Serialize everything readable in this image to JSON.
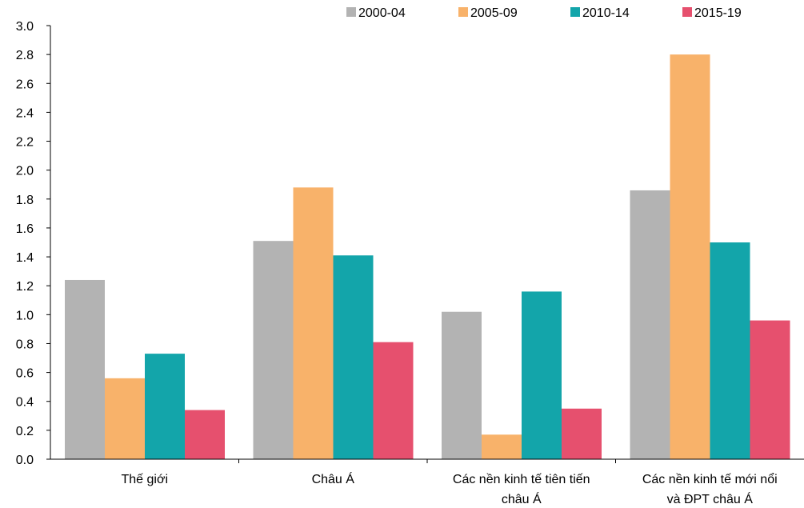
{
  "chart_data": {
    "type": "bar",
    "title": "",
    "xlabel": "",
    "ylabel": "",
    "ylim": [
      0,
      3.0
    ],
    "yticks": [
      "0.0",
      "0.2",
      "0.4",
      "0.6",
      "0.8",
      "1.0",
      "1.2",
      "1.4",
      "1.6",
      "1.8",
      "2.0",
      "2.2",
      "2.4",
      "2.6",
      "2.8",
      "3.0"
    ],
    "grid": false,
    "legend_position": "top-right",
    "categories": [
      [
        "Thế giới"
      ],
      [
        "Châu Á"
      ],
      [
        "Các nền kinh tế tiên tiến",
        "châu Á"
      ],
      [
        "Các nền kinh tế mới nổi",
        "và ĐPT châu Á"
      ]
    ],
    "series": [
      {
        "name": "2000-04",
        "color": "#b3b3b3",
        "values": [
          1.24,
          1.51,
          1.02,
          1.86
        ]
      },
      {
        "name": "2005-09",
        "color": "#f8b26a",
        "values": [
          0.56,
          1.88,
          0.17,
          2.8
        ]
      },
      {
        "name": "2010-14",
        "color": "#13a5aa",
        "values": [
          0.73,
          1.41,
          1.16,
          1.5
        ]
      },
      {
        "name": "2015-19",
        "color": "#e6506e",
        "values": [
          0.34,
          0.81,
          0.35,
          0.96
        ]
      }
    ]
  }
}
